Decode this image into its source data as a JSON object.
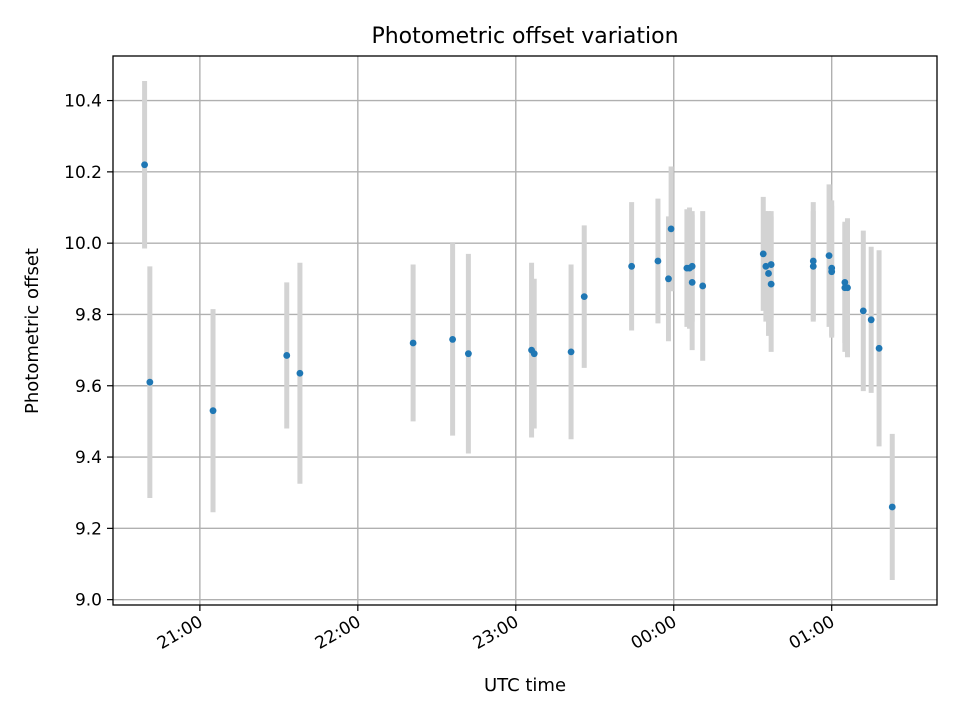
{
  "chart_data": {
    "type": "scatter",
    "title": "Photometric offset variation",
    "xlabel": "UTC time",
    "ylabel": "Photometric offset",
    "x_ticks": [
      "21:00",
      "22:00",
      "23:00",
      "00:00",
      "01:00"
    ],
    "y_ticks": [
      "9.0",
      "9.2",
      "9.4",
      "9.6",
      "9.8",
      "10.0",
      "10.2",
      "10.4"
    ],
    "xlim": [
      "20:27",
      "01:40"
    ],
    "ylim": [
      8.985,
      10.525
    ],
    "grid": true,
    "colors": {
      "marker": "#1f77b4",
      "errorbar": "#d3d3d3",
      "grid": "#b0b0b0"
    },
    "points": [
      {
        "x": "20:39",
        "y": 10.22,
        "err": 0.235
      },
      {
        "x": "20:41",
        "y": 9.61,
        "err": 0.325
      },
      {
        "x": "21:05",
        "y": 9.53,
        "err": 0.285
      },
      {
        "x": "21:33",
        "y": 9.685,
        "err": 0.205
      },
      {
        "x": "21:38",
        "y": 9.635,
        "err": 0.31
      },
      {
        "x": "22:21",
        "y": 9.72,
        "err": 0.22
      },
      {
        "x": "22:36",
        "y": 9.73,
        "err": 0.27
      },
      {
        "x": "22:42",
        "y": 9.69,
        "err": 0.28
      },
      {
        "x": "23:06",
        "y": 9.7,
        "err": 0.245
      },
      {
        "x": "23:07",
        "y": 9.69,
        "err": 0.21
      },
      {
        "x": "23:21",
        "y": 9.695,
        "err": 0.245
      },
      {
        "x": "23:26",
        "y": 9.85,
        "err": 0.2
      },
      {
        "x": "23:44",
        "y": 9.935,
        "err": 0.18
      },
      {
        "x": "23:54",
        "y": 9.95,
        "err": 0.175
      },
      {
        "x": "23:58",
        "y": 9.9,
        "err": 0.175
      },
      {
        "x": "23:59",
        "y": 10.04,
        "err": 0.175
      },
      {
        "x": "00:05",
        "y": 9.93,
        "err": 0.165
      },
      {
        "x": "00:06",
        "y": 9.93,
        "err": 0.17
      },
      {
        "x": "00:07",
        "y": 9.935,
        "err": 0.155
      },
      {
        "x": "00:07",
        "y": 9.89,
        "err": 0.19
      },
      {
        "x": "00:11",
        "y": 9.88,
        "err": 0.21
      },
      {
        "x": "00:34",
        "y": 9.97,
        "err": 0.16
      },
      {
        "x": "00:35",
        "y": 9.935,
        "err": 0.155
      },
      {
        "x": "00:36",
        "y": 9.915,
        "err": 0.175
      },
      {
        "x": "00:37",
        "y": 9.885,
        "err": 0.19
      },
      {
        "x": "00:37",
        "y": 9.94,
        "err": 0.15
      },
      {
        "x": "00:53",
        "y": 9.935,
        "err": 0.155
      },
      {
        "x": "00:53",
        "y": 9.95,
        "err": 0.165
      },
      {
        "x": "00:59",
        "y": 9.965,
        "err": 0.2
      },
      {
        "x": "01:00",
        "y": 9.93,
        "err": 0.19
      },
      {
        "x": "01:00",
        "y": 9.92,
        "err": 0.185
      },
      {
        "x": "01:05",
        "y": 9.89,
        "err": 0.17
      },
      {
        "x": "01:05",
        "y": 9.875,
        "err": 0.18
      },
      {
        "x": "01:06",
        "y": 9.875,
        "err": 0.195
      },
      {
        "x": "01:12",
        "y": 9.81,
        "err": 0.225
      },
      {
        "x": "01:15",
        "y": 9.785,
        "err": 0.205
      },
      {
        "x": "01:18",
        "y": 9.705,
        "err": 0.275
      },
      {
        "x": "01:23",
        "y": 9.26,
        "err": 0.205
      }
    ]
  }
}
